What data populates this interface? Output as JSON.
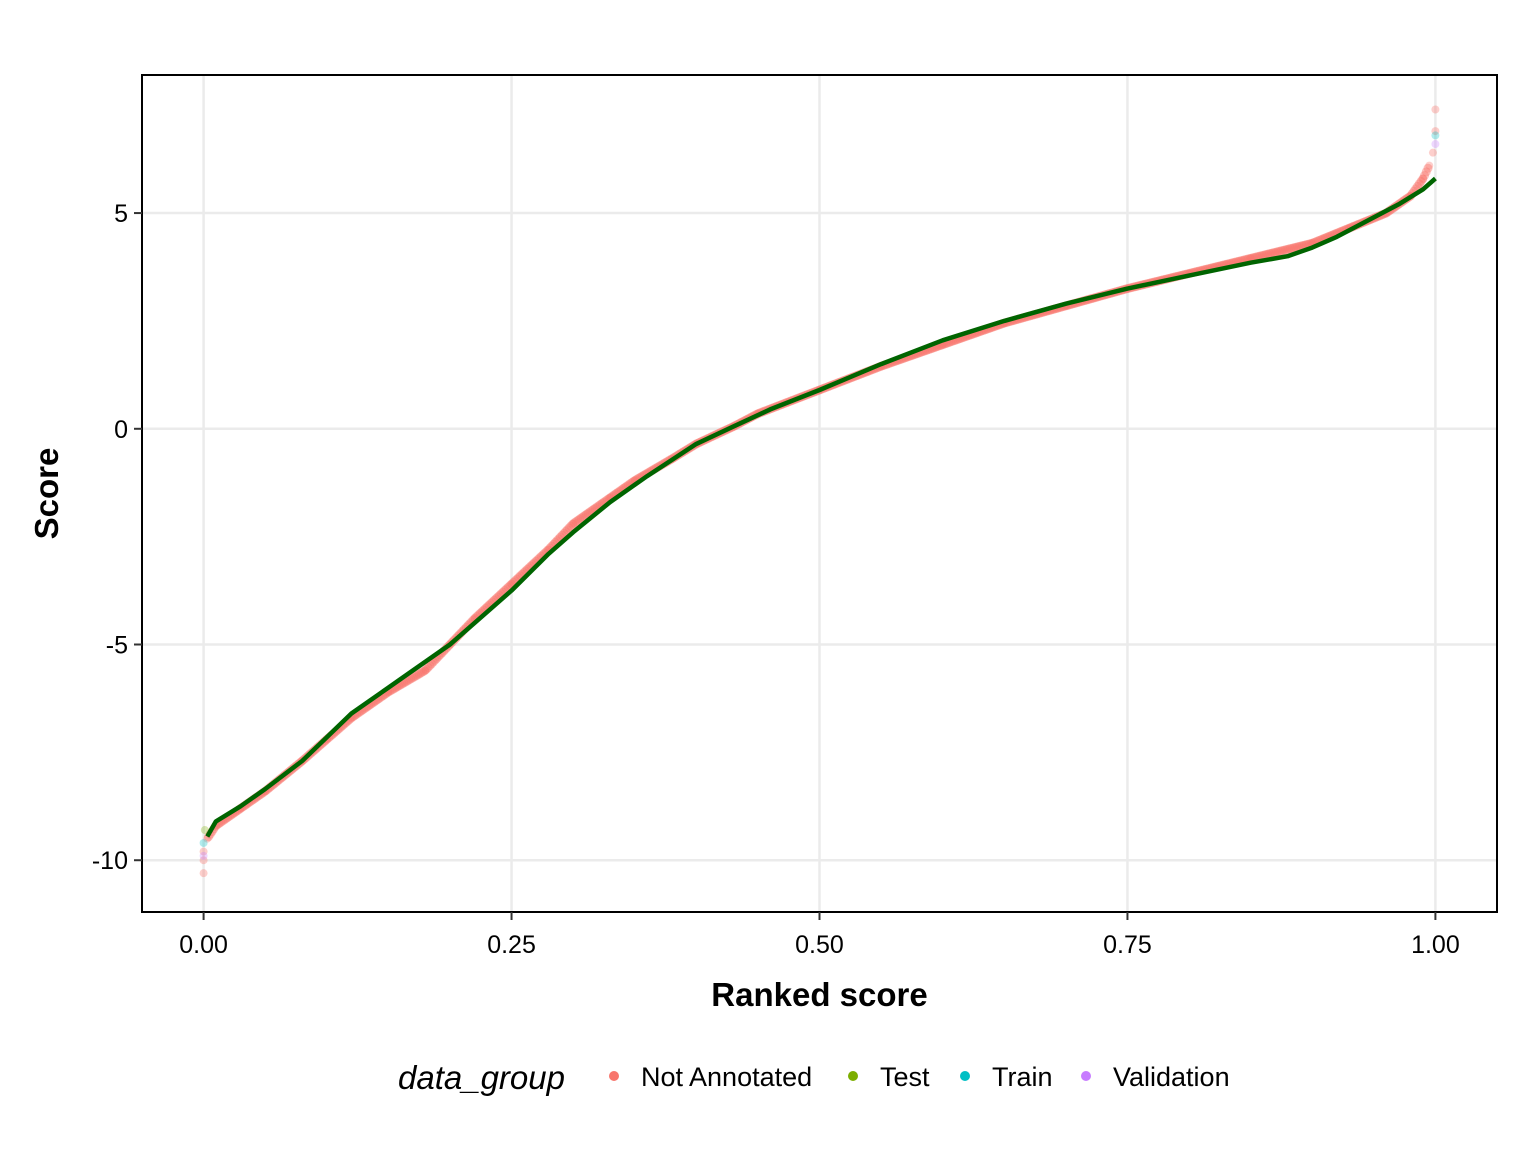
{
  "chart_data": {
    "type": "scatter",
    "title": "",
    "xlabel": "Ranked score",
    "ylabel": "Score",
    "xlim": [
      -0.05,
      1.05
    ],
    "ylim": [
      -11.2,
      8.2
    ],
    "x_ticks": [
      0.0,
      0.25,
      0.5,
      0.75,
      1.0
    ],
    "x_tick_labels": [
      "0.00",
      "0.25",
      "0.50",
      "0.75",
      "1.00"
    ],
    "y_ticks": [
      5,
      0,
      -5,
      -10
    ],
    "y_tick_labels": [
      "5",
      "0",
      "-5",
      "-10"
    ],
    "grid": true,
    "legend": {
      "title": "data_group",
      "position": "bottom",
      "entries": [
        {
          "label": "Not Annotated",
          "color": "#F8766D"
        },
        {
          "label": "Test",
          "color": "#7CAE00"
        },
        {
          "label": "Train",
          "color": "#00BFC4"
        },
        {
          "label": "Validation",
          "color": "#C77CFF"
        }
      ]
    },
    "series": [
      {
        "name": "Not Annotated",
        "color": "#F8766D",
        "x": [
          0.0,
          0.0,
          0.0,
          0.003,
          0.01,
          0.03,
          0.05,
          0.08,
          0.1,
          0.12,
          0.15,
          0.18,
          0.2,
          0.22,
          0.25,
          0.28,
          0.3,
          0.33,
          0.35,
          0.38,
          0.4,
          0.43,
          0.45,
          0.5,
          0.55,
          0.6,
          0.65,
          0.7,
          0.75,
          0.8,
          0.85,
          0.9,
          0.93,
          0.96,
          0.98,
          0.99,
          0.995,
          0.998,
          1.0,
          1.0
        ],
        "y": [
          -10.3,
          -10.0,
          -9.8,
          -9.5,
          -9.2,
          -8.8,
          -8.4,
          -7.7,
          -7.2,
          -6.7,
          -6.1,
          -5.6,
          -5.0,
          -4.4,
          -3.6,
          -2.8,
          -2.2,
          -1.6,
          -1.2,
          -0.7,
          -0.35,
          0.05,
          0.35,
          0.9,
          1.45,
          1.95,
          2.45,
          2.85,
          3.25,
          3.6,
          3.95,
          4.3,
          4.65,
          5.0,
          5.4,
          5.8,
          6.1,
          6.4,
          6.9,
          7.4
        ]
      }
    ],
    "fit_line": {
      "color": "#006400",
      "x": [
        0.003,
        0.01,
        0.03,
        0.05,
        0.08,
        0.1,
        0.12,
        0.15,
        0.17,
        0.2,
        0.22,
        0.25,
        0.28,
        0.3,
        0.33,
        0.36,
        0.4,
        0.43,
        0.46,
        0.5,
        0.55,
        0.6,
        0.65,
        0.7,
        0.75,
        0.8,
        0.85,
        0.88,
        0.9,
        0.92,
        0.95,
        0.97,
        0.99,
        1.0
      ],
      "y": [
        -9.45,
        -9.1,
        -8.75,
        -8.35,
        -7.7,
        -7.15,
        -6.6,
        -6.0,
        -5.6,
        -5.0,
        -4.5,
        -3.75,
        -2.9,
        -2.4,
        -1.7,
        -1.1,
        -0.35,
        0.05,
        0.45,
        0.9,
        1.5,
        2.05,
        2.5,
        2.9,
        3.25,
        3.55,
        3.85,
        4.0,
        4.2,
        4.45,
        4.9,
        5.2,
        5.55,
        5.8
      ]
    }
  }
}
